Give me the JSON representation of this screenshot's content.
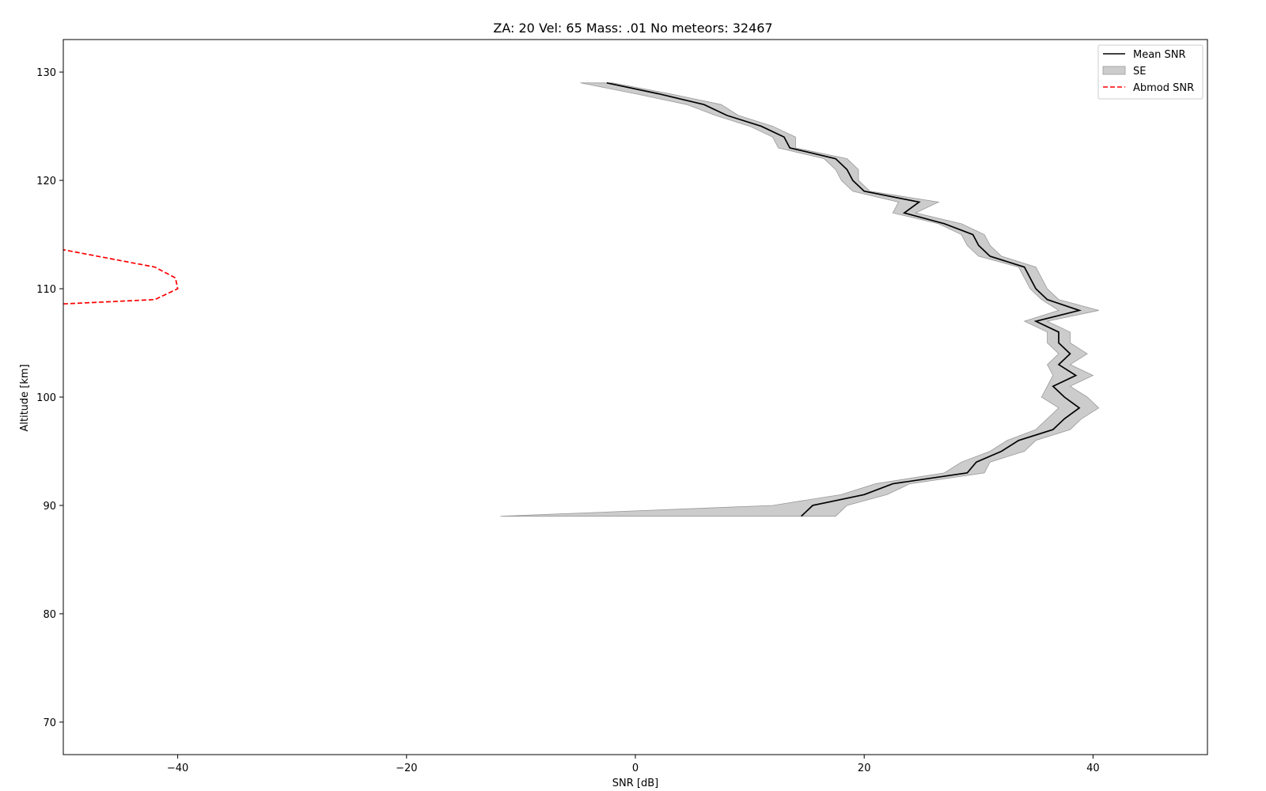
{
  "chart_data": {
    "type": "line",
    "title": "ZA: 20 Vel: 65 Mass: .01 No meteors: 32467",
    "xlabel": "SNR [dB]",
    "ylabel": "Altitude [km]",
    "xlim": [
      -50,
      50
    ],
    "ylim": [
      67,
      133
    ],
    "xticks": [
      -40,
      -20,
      0,
      20,
      40
    ],
    "yticks": [
      70,
      80,
      90,
      100,
      110,
      120,
      130
    ],
    "xtick_labels": [
      "−40",
      "−20",
      "0",
      "20",
      "40"
    ],
    "ytick_labels": [
      "70",
      "80",
      "90",
      "100",
      "110",
      "120",
      "130"
    ],
    "grid": false,
    "legend_position": "top-right",
    "legend": [
      "Mean SNR",
      "SE",
      "Abmod SNR"
    ],
    "series": [
      {
        "name": "Mean SNR",
        "style": "solid",
        "color": "#000000",
        "points": [
          [
            14.5,
            89
          ],
          [
            15.5,
            90
          ],
          [
            20.0,
            91
          ],
          [
            22.5,
            92
          ],
          [
            29.0,
            93
          ],
          [
            29.8,
            94
          ],
          [
            32.0,
            95
          ],
          [
            33.5,
            96
          ],
          [
            36.5,
            97
          ],
          [
            37.5,
            98
          ],
          [
            38.8,
            99
          ],
          [
            37.5,
            100
          ],
          [
            36.5,
            101
          ],
          [
            38.5,
            102
          ],
          [
            37.0,
            103
          ],
          [
            38.0,
            104
          ],
          [
            37.0,
            105
          ],
          [
            37.0,
            106
          ],
          [
            35.0,
            107
          ],
          [
            38.8,
            108
          ],
          [
            36.0,
            109
          ],
          [
            35.0,
            110
          ],
          [
            34.5,
            111
          ],
          [
            34.0,
            112
          ],
          [
            31.0,
            113
          ],
          [
            30.0,
            114
          ],
          [
            29.5,
            115
          ],
          [
            27.0,
            116
          ],
          [
            23.5,
            117
          ],
          [
            24.8,
            118
          ],
          [
            20.0,
            119
          ],
          [
            19.0,
            120
          ],
          [
            18.5,
            121
          ],
          [
            17.5,
            122
          ],
          [
            13.5,
            123
          ],
          [
            13.0,
            124
          ],
          [
            11.0,
            125
          ],
          [
            8.0,
            126
          ],
          [
            6.0,
            127
          ],
          [
            2.0,
            128
          ],
          [
            -2.5,
            129
          ]
        ]
      },
      {
        "name": "Abmod SNR",
        "style": "dashed",
        "color": "#ff0000",
        "points": [
          [
            -50.0,
            108.6
          ],
          [
            -42.0,
            109
          ],
          [
            -40.0,
            110
          ],
          [
            -40.2,
            111
          ],
          [
            -42.0,
            112
          ],
          [
            -47.0,
            113
          ],
          [
            -50.0,
            113.6
          ]
        ]
      }
    ],
    "band": {
      "name": "SE",
      "color": "#cccccc",
      "edge_color": "#999999",
      "lower": [
        [
          -11.8,
          89
        ],
        [
          12.0,
          90
        ],
        [
          18.0,
          91
        ],
        [
          21.0,
          92
        ],
        [
          27.0,
          93
        ],
        [
          28.5,
          94
        ],
        [
          31.0,
          95
        ],
        [
          32.5,
          96
        ],
        [
          35.0,
          97
        ],
        [
          36.0,
          98
        ],
        [
          37.0,
          99
        ],
        [
          35.5,
          100
        ],
        [
          36.0,
          101
        ],
        [
          36.5,
          102
        ],
        [
          36.0,
          103
        ],
        [
          37.0,
          104
        ],
        [
          36.0,
          105
        ],
        [
          36.0,
          106
        ],
        [
          34.0,
          107
        ],
        [
          37.0,
          108
        ],
        [
          35.5,
          109
        ],
        [
          34.5,
          110
        ],
        [
          34.0,
          111
        ],
        [
          33.5,
          112
        ],
        [
          30.0,
          113
        ],
        [
          29.0,
          114
        ],
        [
          28.5,
          115
        ],
        [
          26.5,
          116
        ],
        [
          22.5,
          117
        ],
        [
          23.0,
          118
        ],
        [
          19.0,
          119
        ],
        [
          18.0,
          120
        ],
        [
          17.5,
          121
        ],
        [
          16.5,
          122
        ],
        [
          12.5,
          123
        ],
        [
          12.0,
          124
        ],
        [
          10.0,
          125
        ],
        [
          7.0,
          126
        ],
        [
          4.5,
          127
        ],
        [
          0.0,
          128
        ],
        [
          -4.8,
          129
        ]
      ],
      "upper": [
        [
          17.5,
          89
        ],
        [
          18.5,
          90
        ],
        [
          22.0,
          91
        ],
        [
          24.0,
          92
        ],
        [
          30.5,
          93
        ],
        [
          31.0,
          94
        ],
        [
          34.0,
          95
        ],
        [
          35.0,
          96
        ],
        [
          38.0,
          97
        ],
        [
          39.0,
          98
        ],
        [
          40.5,
          99
        ],
        [
          39.5,
          100
        ],
        [
          38.0,
          101
        ],
        [
          40.0,
          102
        ],
        [
          38.0,
          103
        ],
        [
          39.5,
          104
        ],
        [
          38.0,
          105
        ],
        [
          38.0,
          106
        ],
        [
          36.0,
          107
        ],
        [
          40.5,
          108
        ],
        [
          37.0,
          109
        ],
        [
          36.0,
          110
        ],
        [
          35.5,
          111
        ],
        [
          35.0,
          112
        ],
        [
          32.0,
          113
        ],
        [
          31.0,
          114
        ],
        [
          30.5,
          115
        ],
        [
          28.5,
          116
        ],
        [
          24.5,
          117
        ],
        [
          26.5,
          118
        ],
        [
          20.5,
          119
        ],
        [
          19.5,
          120
        ],
        [
          19.5,
          121
        ],
        [
          18.5,
          122
        ],
        [
          14.0,
          123
        ],
        [
          14.0,
          124
        ],
        [
          12.0,
          125
        ],
        [
          9.0,
          126
        ],
        [
          7.5,
          127
        ],
        [
          3.0,
          128
        ],
        [
          -2.0,
          129
        ]
      ]
    }
  }
}
